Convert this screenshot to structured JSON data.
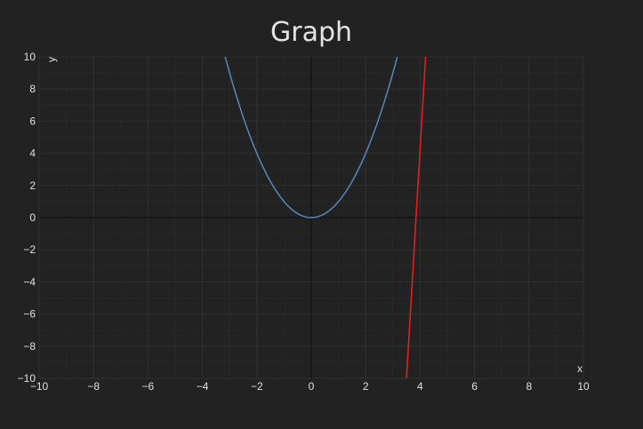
{
  "chart_data": {
    "type": "line",
    "title": "Graph",
    "xlabel": "x",
    "ylabel": "y",
    "xlim": [
      -10,
      10
    ],
    "ylim": [
      -10,
      10
    ],
    "grid": true,
    "legend": "none",
    "x_ticks": [
      -10,
      -8,
      -6,
      -4,
      -2,
      0,
      2,
      4,
      6,
      8,
      10
    ],
    "y_ticks": [
      -10,
      -8,
      -6,
      -4,
      -2,
      0,
      2,
      4,
      6,
      8,
      10
    ],
    "x_tick_labels": [
      "−10",
      "−8",
      "−6",
      "−4",
      "−2",
      "0",
      "2",
      "4",
      "6",
      "8",
      "10"
    ],
    "y_tick_labels": [
      "−10",
      "−8",
      "−6",
      "−4",
      "−2",
      "0",
      "2",
      "4",
      "6",
      "8",
      "10"
    ],
    "series": [
      {
        "color": "#5a8fc4",
        "x": [
          -3.2,
          -3,
          -2.5,
          -2,
          -1.5,
          -1,
          -0.5,
          0,
          0.5,
          1,
          1.5,
          2,
          2.5,
          3,
          3.2
        ],
        "y": [
          10.24,
          9,
          6.25,
          4,
          2.25,
          1,
          0.25,
          0,
          0.25,
          1,
          2.25,
          4,
          6.25,
          9,
          10.24
        ]
      },
      {
        "color": "#e02020",
        "x": [
          3.5,
          4.2
        ],
        "y": [
          -10,
          10
        ]
      }
    ]
  },
  "colors": {
    "background": "#222222",
    "grid_minor": "#282828",
    "grid_major": "#303030",
    "zero_line": "#141414",
    "text": "#e0e0e0"
  }
}
